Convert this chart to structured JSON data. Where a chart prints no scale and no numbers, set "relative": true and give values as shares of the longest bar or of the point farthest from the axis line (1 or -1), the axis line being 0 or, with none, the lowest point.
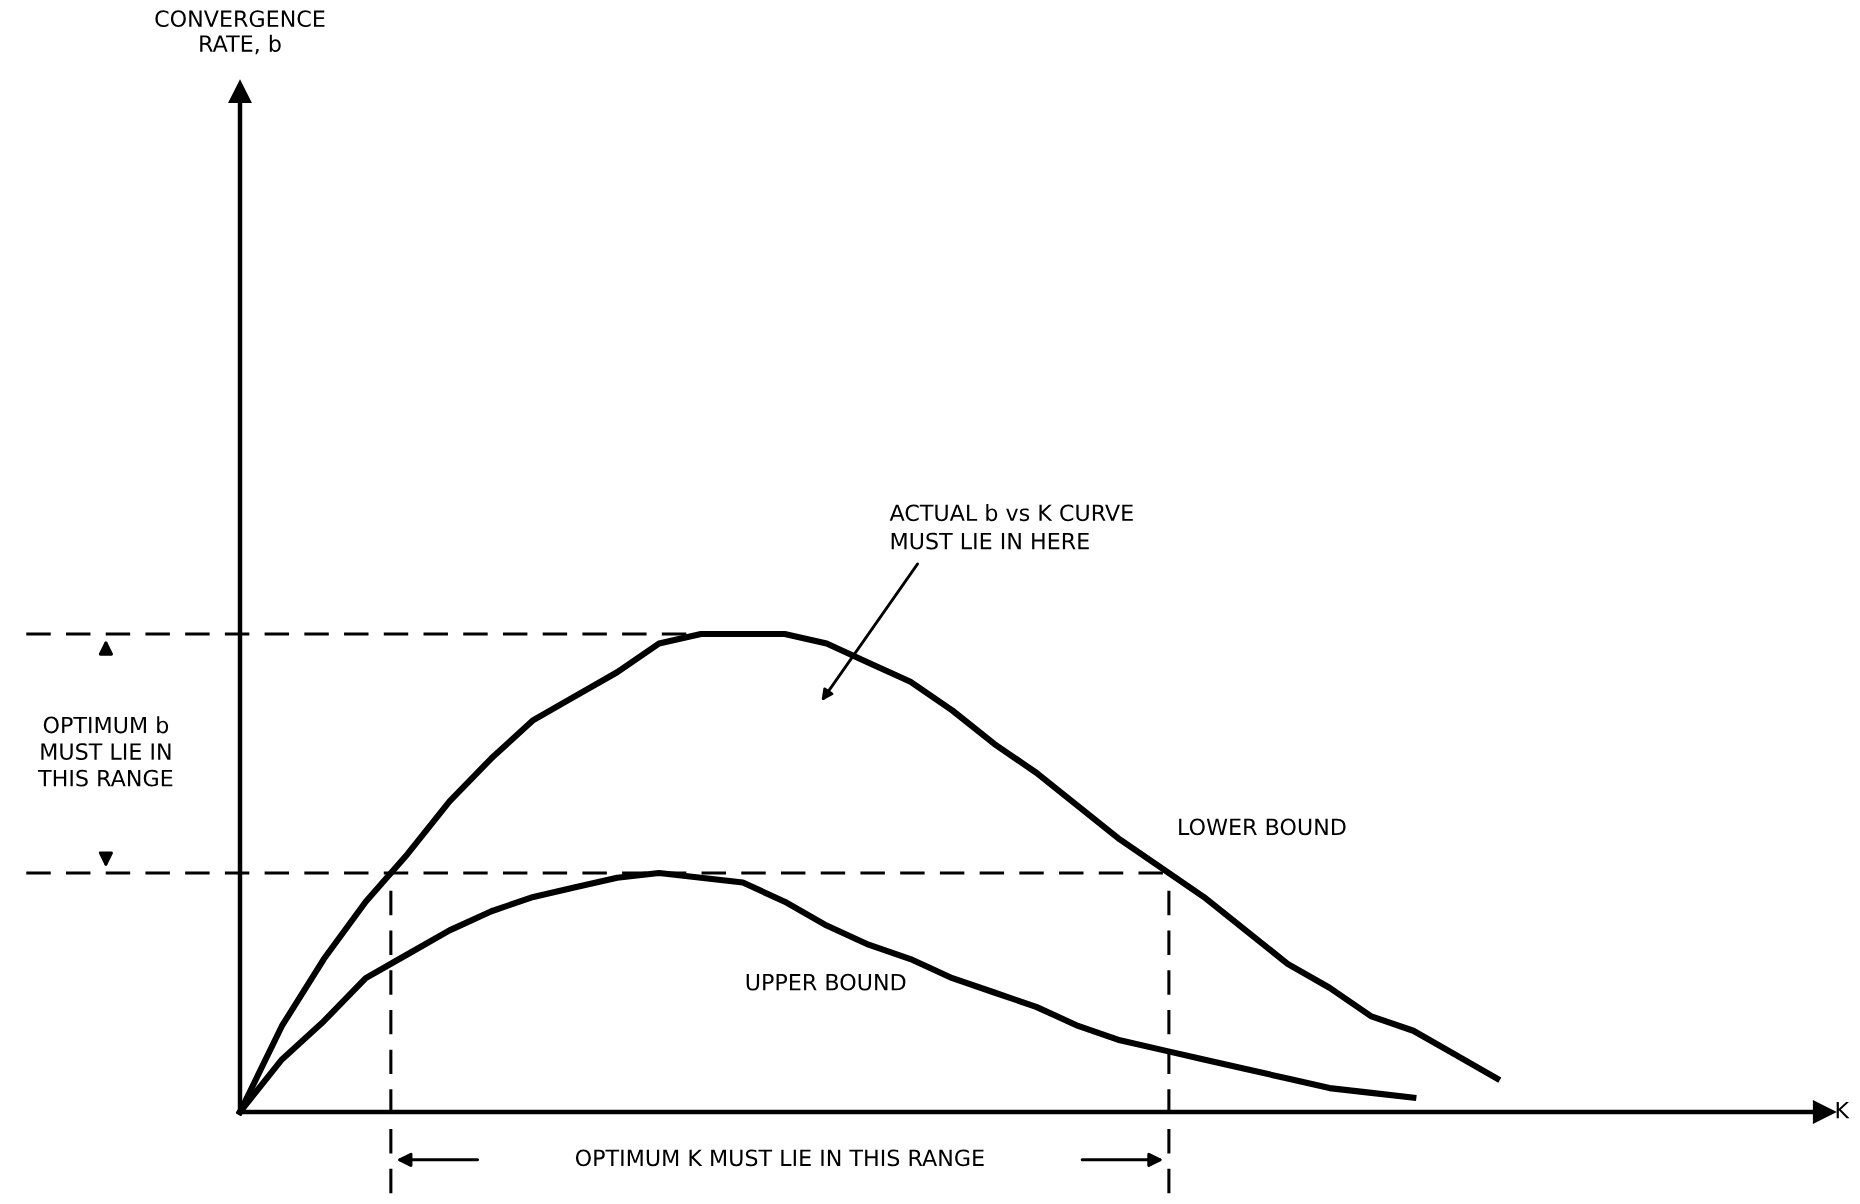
{
  "chart_data": {
    "type": "line",
    "relative": true,
    "categories": [
      null,
      null,
      null,
      null,
      null,
      null,
      null,
      null,
      null,
      null,
      null,
      null,
      null,
      null,
      null,
      null,
      null,
      null,
      null,
      null,
      null,
      null,
      null,
      null,
      null,
      null,
      null,
      null,
      null,
      null,
      null
    ],
    "series": [
      {
        "name": "LOWER BOUND",
        "color": "#000000",
        "values": [
          0,
          0.18,
          0.32,
          0.44,
          0.54,
          0.65,
          0.74,
          0.82,
          0.87,
          0.92,
          0.98,
          1.0,
          1.0,
          1.0,
          0.98,
          0.94,
          0.9,
          0.84,
          0.77,
          0.71,
          0.64,
          0.57,
          0.51,
          0.45,
          0.38,
          0.31,
          0.26,
          0.2,
          0.17,
          0.12,
          0.07
        ]
      },
      {
        "name": "UPPER BOUND",
        "color": "#000000",
        "values": [
          0,
          0.11,
          0.19,
          0.28,
          0.33,
          0.38,
          0.42,
          0.45,
          0.47,
          0.49,
          0.5,
          0.49,
          0.48,
          0.44,
          0.39,
          0.35,
          0.32,
          0.28,
          0.25,
          0.22,
          0.18,
          0.15,
          0.13,
          0.11,
          0.09,
          0.07,
          0.05,
          0.04,
          0.03,
          null,
          null
        ]
      }
    ],
    "ref_lines": [
      {
        "axis": "y",
        "value": 1.0,
        "color": "#000000",
        "line_style": "dashed"
      },
      {
        "axis": "y",
        "value": 0.5,
        "color": "#000000",
        "line_style": "dashed"
      }
    ],
    "annotations": [
      "CONVERGENCE\nRATE, b",
      "K",
      "OPTIMUM b\nMUST LIE IN\nTHIS RANGE",
      "OPTIMUM K MUST LIE IN THIS RANGE",
      "ACTUAL b vs K CURVE\nMUST LIE IN HERE"
    ],
    "legend": false,
    "marker": "none",
    "line_style": "solid"
  }
}
